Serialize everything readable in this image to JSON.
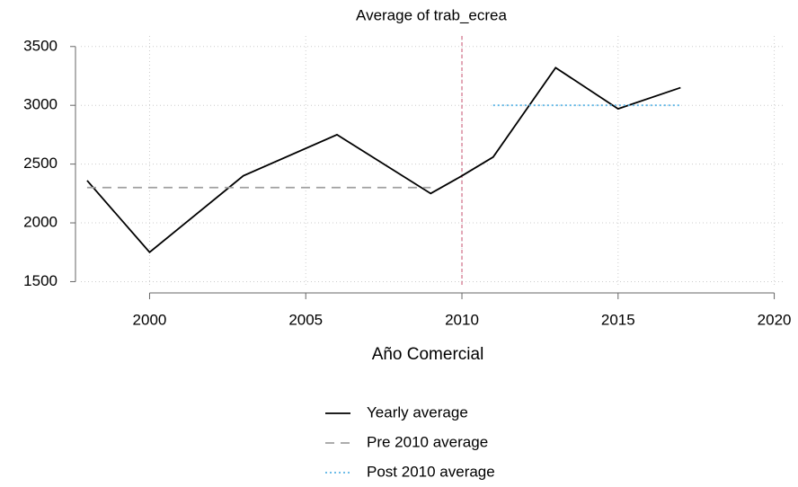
{
  "chart_data": {
    "type": "line",
    "title": "Average of trab_ecrea",
    "x_label": "Año Comercial",
    "series": [
      {
        "name": "Yearly average",
        "color": "#000000",
        "dash": "solid",
        "x": [
          1998,
          2000,
          2003,
          2006,
          2009,
          2010,
          2011,
          2013,
          2015,
          2017
        ],
        "values": [
          2360,
          1750,
          2400,
          2750,
          2250,
          2400,
          2560,
          3320,
          2970,
          3150
        ]
      },
      {
        "name": "Pre 2010 average",
        "color": "#a0a0a0",
        "dash": "dashed",
        "x": [
          1998,
          2009
        ],
        "values": [
          2300,
          2300
        ]
      },
      {
        "name": "Post 2010 average",
        "color": "#5ab4e5",
        "dash": "dotted",
        "x": [
          2011,
          2017
        ],
        "values": [
          3000,
          3000
        ]
      }
    ],
    "reference_line": {
      "x": 2010,
      "color": "#c8506e"
    },
    "xlim": [
      1997.8,
      2020.3
    ],
    "xticks": [
      2000,
      2005,
      2010,
      2015,
      2020
    ],
    "ylim": [
      1450,
      3590
    ],
    "yticks": [
      1500,
      2000,
      2500,
      3000,
      3500
    ],
    "grid": true,
    "legend": "bottom"
  }
}
